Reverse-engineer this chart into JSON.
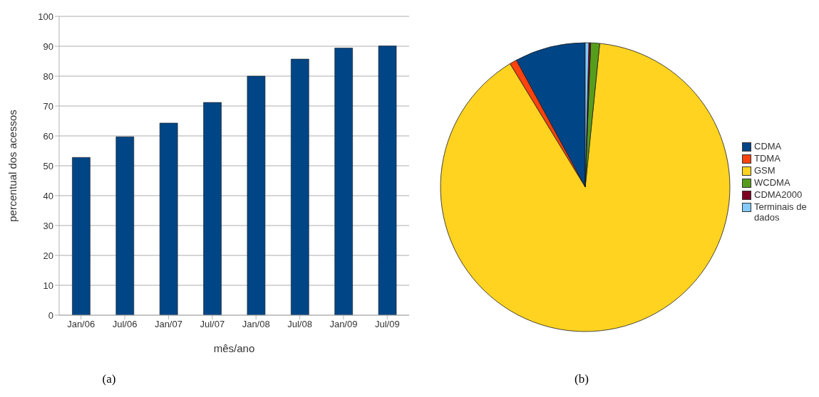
{
  "chart_data": [
    {
      "type": "bar",
      "xlabel": "mês/ano",
      "ylabel": "percentual dos acessos",
      "categories": [
        "Jan/06",
        "Jul/06",
        "Jan/07",
        "Jul/07",
        "Jan/08",
        "Jul/08",
        "Jan/09",
        "Jul/09"
      ],
      "values": [
        52.8,
        59.7,
        64.3,
        71.2,
        80,
        85.7,
        89.4,
        90.1
      ],
      "color": "#004586",
      "ylim": [
        0,
        100
      ],
      "yticks": [
        0,
        10,
        20,
        30,
        40,
        50,
        60,
        70,
        80,
        90,
        100
      ],
      "grid": "y",
      "annotations": [
        "(a)"
      ]
    },
    {
      "type": "pie",
      "categories": [
        "CDMA",
        "TDMA",
        "GSM",
        "WCDMA",
        "CDMA2000",
        "Terminais de dados"
      ],
      "values": [
        7.9,
        0.8,
        89.7,
        1.0,
        0.2,
        0.4
      ],
      "colors": [
        "#004586",
        "#ff420e",
        "#ffd320",
        "#579d1c",
        "#7e0021",
        "#83caff"
      ],
      "legend": "right",
      "annotations": [
        "(b)"
      ]
    }
  ]
}
